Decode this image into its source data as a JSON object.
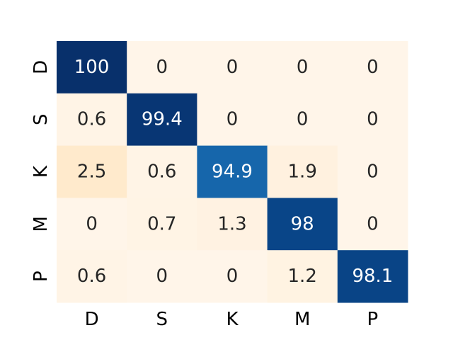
{
  "chart_data": {
    "type": "heatmap",
    "title": "",
    "xlabel": "",
    "ylabel": "",
    "x_categories": [
      "D",
      "S",
      "K",
      "M",
      "P"
    ],
    "y_categories": [
      "D",
      "S",
      "K",
      "M",
      "P"
    ],
    "values": [
      [
        100,
        0,
        0,
        0,
        0
      ],
      [
        0.6,
        99.4,
        0,
        0,
        0
      ],
      [
        2.5,
        0.6,
        94.9,
        1.9,
        0
      ],
      [
        0,
        0.7,
        1.3,
        98,
        0
      ],
      [
        0.6,
        0,
        0,
        1.2,
        98.1
      ]
    ],
    "value_labels": [
      [
        "100",
        "0",
        "0",
        "0",
        "0"
      ],
      [
        "0.6",
        "99.4",
        "0",
        "0",
        "0"
      ],
      [
        "2.5",
        "0.6",
        "94.9",
        "1.9",
        "0"
      ],
      [
        "0",
        "0.7",
        "1.3",
        "98",
        "0"
      ],
      [
        "0.6",
        "0",
        "0",
        "1.2",
        "98.1"
      ]
    ],
    "colormap": "Blues-on-cream",
    "colorbar": false,
    "grid": false,
    "colors": {
      "low": "#fff5e9",
      "high": "#08306b",
      "text_light": "#ffffff",
      "text_dark": "#262626"
    }
  }
}
